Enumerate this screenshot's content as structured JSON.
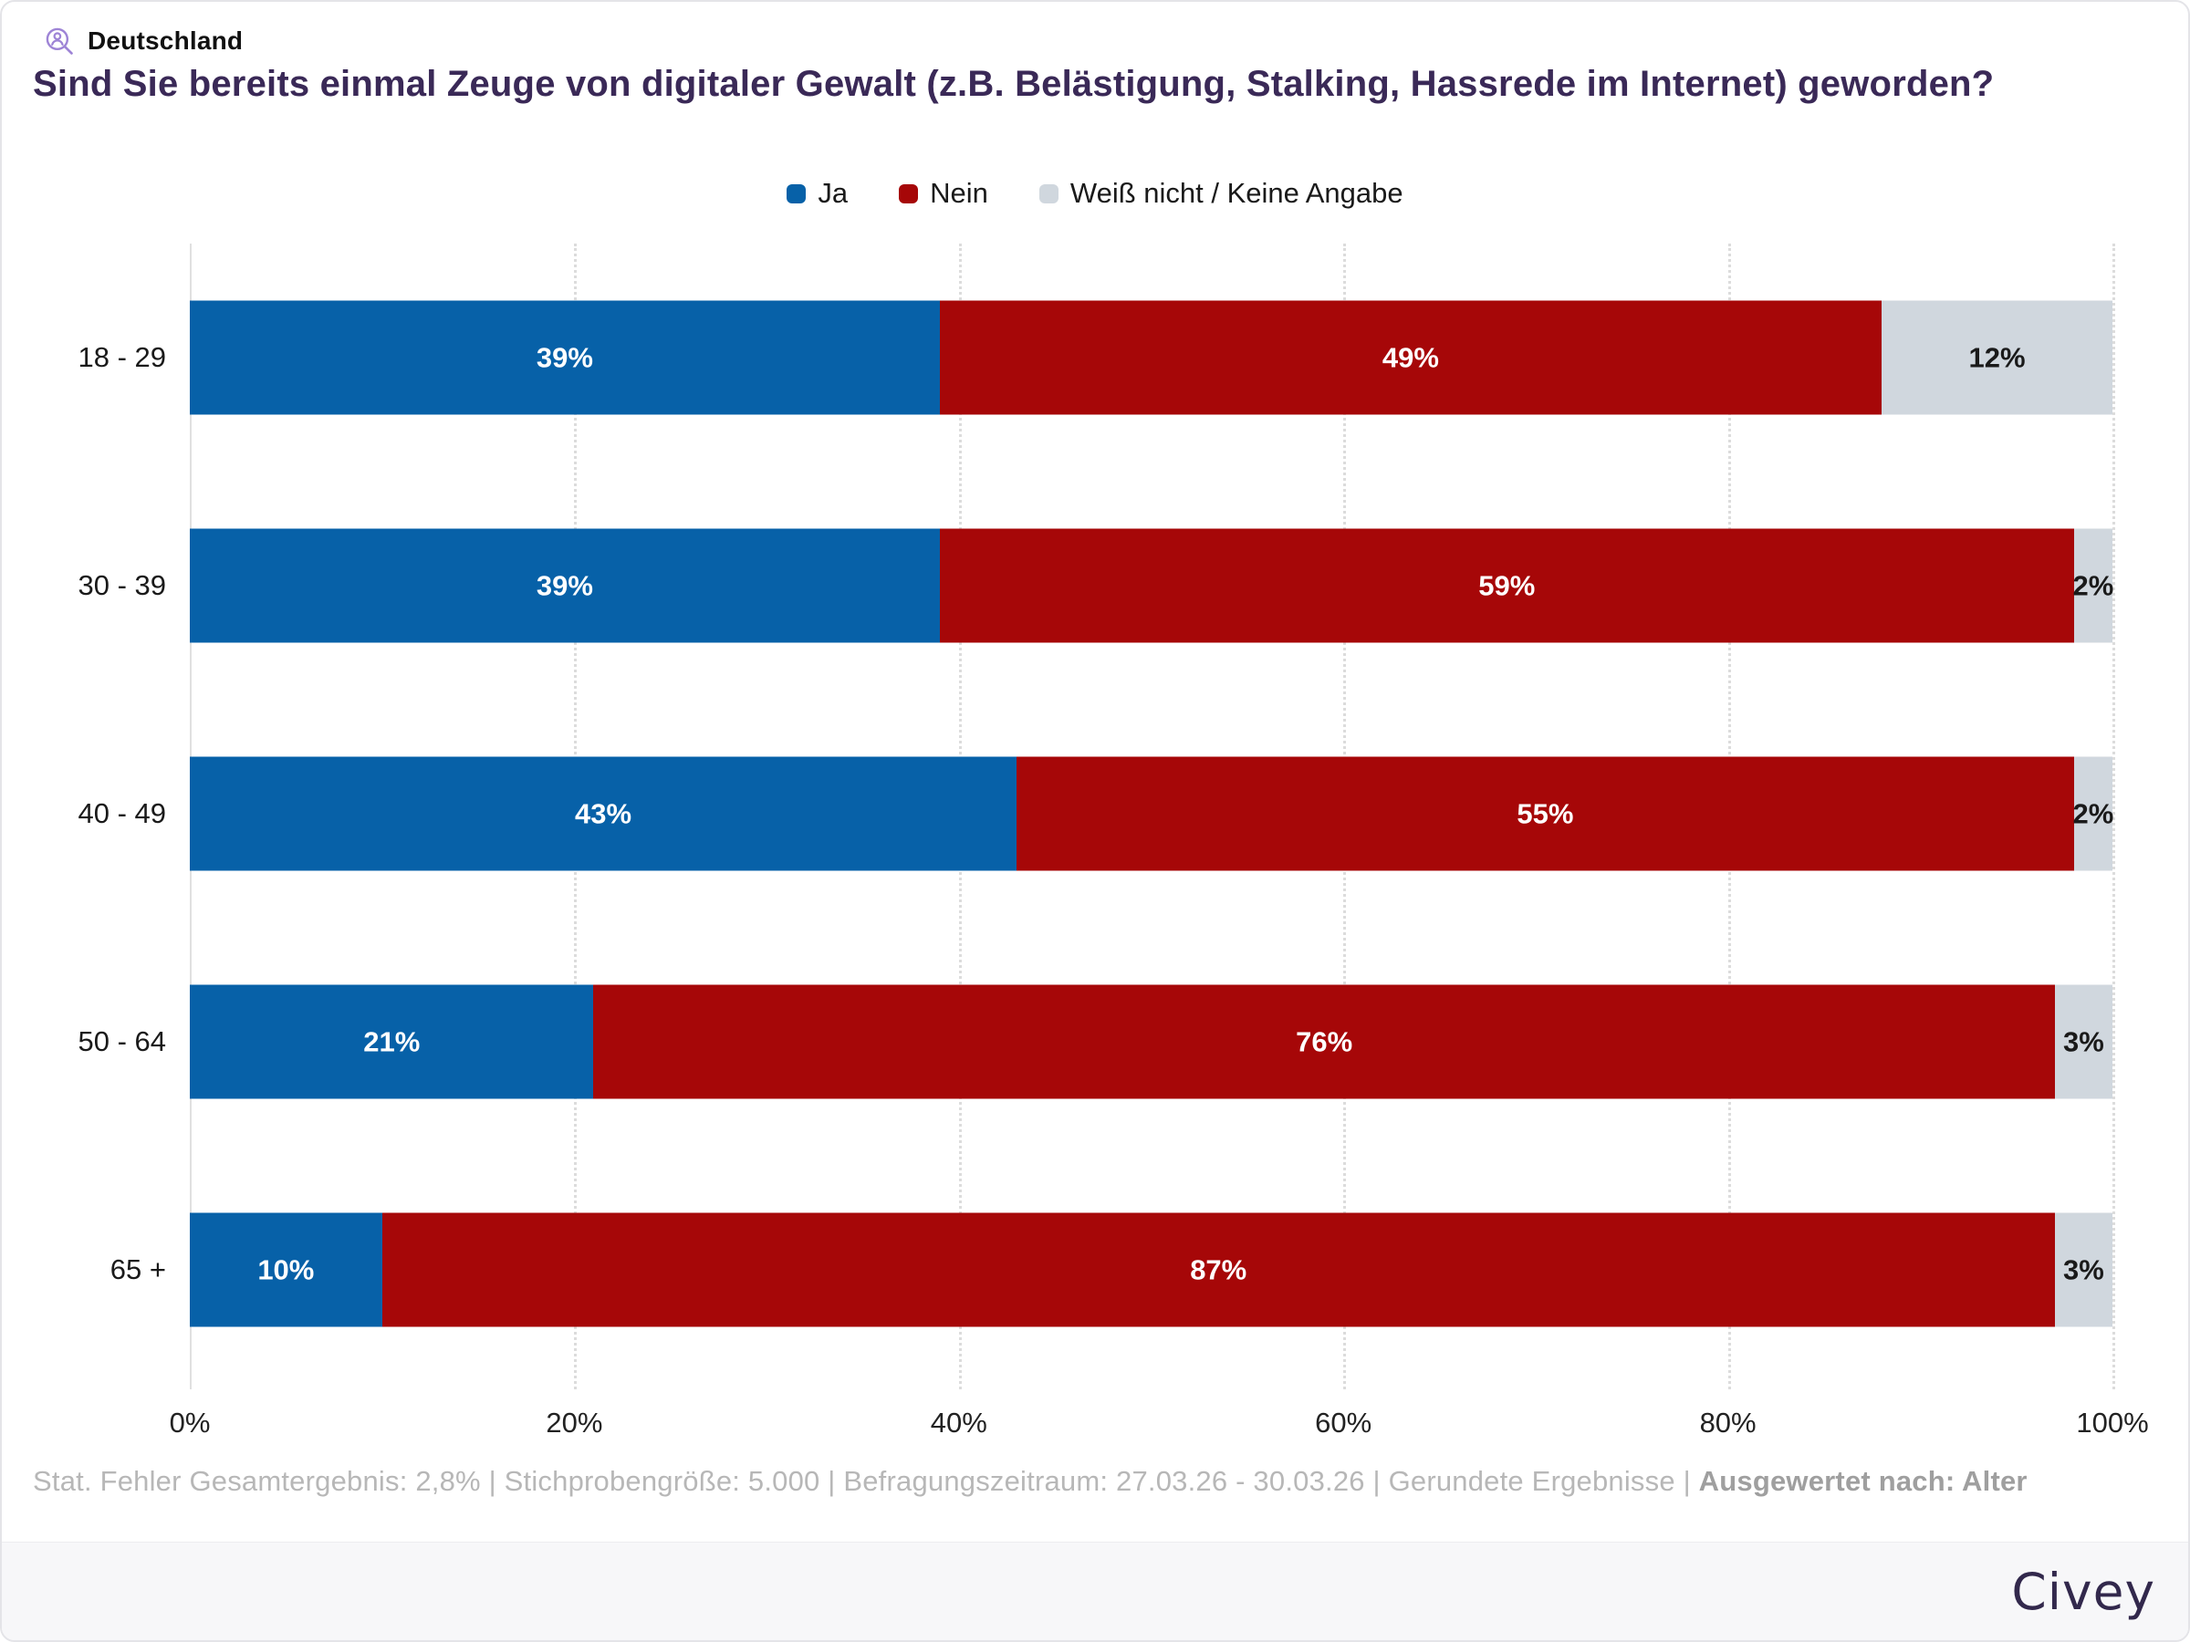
{
  "header": {
    "region_label": "Deutschland",
    "title": "Sind Sie bereits einmal Zeuge von digitaler Gewalt (z.B. Belästigung, Stalking, Hassrede im Internet) geworden?"
  },
  "chart_data": {
    "type": "bar",
    "stacked": true,
    "orientation": "horizontal",
    "categories": [
      "18 - 29",
      "30 - 39",
      "40 - 49",
      "50 - 64",
      "65 +"
    ],
    "series": [
      {
        "key": "ja",
        "name": "Ja",
        "color": "#0761A8",
        "label_color": "#FFFFFF",
        "values": [
          39,
          39,
          43,
          21,
          10
        ]
      },
      {
        "key": "nein",
        "name": "Nein",
        "color": "#A60708",
        "label_color": "#FFFFFF",
        "values": [
          49,
          59,
          55,
          76,
          87
        ]
      },
      {
        "key": "weiss-nicht-keine-angabe",
        "name": "Weiß nicht / Keine Angabe",
        "color": "#D0D7DE",
        "label_color": "#1A1A1A",
        "values": [
          12,
          2,
          2,
          3,
          3
        ]
      }
    ],
    "value_suffix": "%",
    "xlim": [
      0,
      100
    ],
    "x_ticks": [
      "0%",
      "20%",
      "40%",
      "60%",
      "80%",
      "100%"
    ],
    "x_tick_step": 20,
    "grid": "vertical dotted lines at 20% steps, solid axis line at 0%",
    "legend_position": "top-center",
    "bar_value_labels": "centered inside each segment"
  },
  "footnote": {
    "text": "Stat. Fehler Gesamtergebnis: 2,8% | Stichprobengröße: 5.000 | Befragungszeitraum: 27.03.26 - 30.03.26 | Gerundete Ergebnisse | ",
    "bold": "Ausgewertet nach: Alter"
  },
  "footer": {
    "brand": "Civey"
  },
  "colors": {
    "title_text": "#3A2957",
    "header_icon": "#9E84D6",
    "brand_text": "#32284C",
    "grid_line": "#DCDCDC",
    "footnote_text": "#B7B7B7"
  }
}
